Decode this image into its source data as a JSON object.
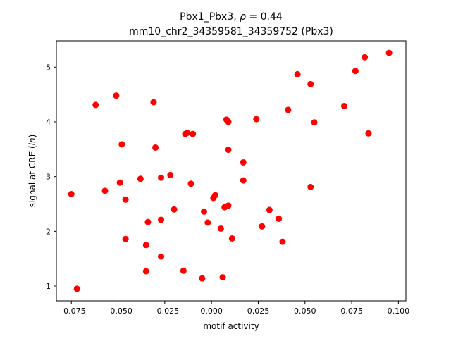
{
  "chart_data": {
    "type": "scatter",
    "title_line1": "Pbx1_Pbx3, ρ = 0.44",
    "title_line2": "mm10_chr2_34359581_34359752 (Pbx3)",
    "xlabel": "motif activity",
    "ylabel": "signal at CRE (ln)",
    "xlim": [
      -0.083,
      0.104
    ],
    "ylim": [
      0.73,
      5.48
    ],
    "x_ticks": [
      -0.075,
      -0.05,
      -0.025,
      0.0,
      0.025,
      0.05,
      0.075,
      0.1
    ],
    "x_tick_labels": [
      "−0.075",
      "−0.050",
      "−0.025",
      "0.000",
      "0.025",
      "0.050",
      "0.075",
      "0.100"
    ],
    "y_ticks": [
      1,
      2,
      3,
      4,
      5
    ],
    "y_tick_labels": [
      "1",
      "2",
      "3",
      "4",
      "5"
    ],
    "marker_color": "#ff0000",
    "grid": false,
    "points": [
      {
        "x": -0.075,
        "y": 2.68
      },
      {
        "x": -0.072,
        "y": 0.95
      },
      {
        "x": -0.062,
        "y": 4.31
      },
      {
        "x": -0.057,
        "y": 2.74
      },
      {
        "x": -0.051,
        "y": 4.48
      },
      {
        "x": -0.049,
        "y": 2.89
      },
      {
        "x": -0.048,
        "y": 3.59
      },
      {
        "x": -0.046,
        "y": 2.58
      },
      {
        "x": -0.046,
        "y": 1.86
      },
      {
        "x": -0.038,
        "y": 2.96
      },
      {
        "x": -0.035,
        "y": 1.75
      },
      {
        "x": -0.035,
        "y": 1.27
      },
      {
        "x": -0.034,
        "y": 2.17
      },
      {
        "x": -0.031,
        "y": 4.36
      },
      {
        "x": -0.03,
        "y": 3.53
      },
      {
        "x": -0.027,
        "y": 2.21
      },
      {
        "x": -0.027,
        "y": 2.98
      },
      {
        "x": -0.027,
        "y": 1.54
      },
      {
        "x": -0.022,
        "y": 3.03
      },
      {
        "x": -0.02,
        "y": 2.4
      },
      {
        "x": -0.015,
        "y": 1.28
      },
      {
        "x": -0.014,
        "y": 3.78
      },
      {
        "x": -0.013,
        "y": 3.8
      },
      {
        "x": -0.011,
        "y": 2.87
      },
      {
        "x": -0.01,
        "y": 3.78
      },
      {
        "x": -0.005,
        "y": 1.14
      },
      {
        "x": -0.004,
        "y": 2.36
      },
      {
        "x": -0.002,
        "y": 2.16
      },
      {
        "x": 0.001,
        "y": 2.61
      },
      {
        "x": 0.002,
        "y": 2.66
      },
      {
        "x": 0.005,
        "y": 2.05
      },
      {
        "x": 0.006,
        "y": 1.16
      },
      {
        "x": 0.007,
        "y": 2.44
      },
      {
        "x": 0.008,
        "y": 4.04
      },
      {
        "x": 0.009,
        "y": 2.47
      },
      {
        "x": 0.009,
        "y": 3.49
      },
      {
        "x": 0.009,
        "y": 4.0
      },
      {
        "x": 0.011,
        "y": 1.87
      },
      {
        "x": 0.017,
        "y": 3.26
      },
      {
        "x": 0.017,
        "y": 2.93
      },
      {
        "x": 0.024,
        "y": 4.05
      },
      {
        "x": 0.027,
        "y": 2.09
      },
      {
        "x": 0.031,
        "y": 2.39
      },
      {
        "x": 0.036,
        "y": 2.23
      },
      {
        "x": 0.038,
        "y": 1.81
      },
      {
        "x": 0.041,
        "y": 4.22
      },
      {
        "x": 0.046,
        "y": 4.87
      },
      {
        "x": 0.053,
        "y": 2.81
      },
      {
        "x": 0.053,
        "y": 4.69
      },
      {
        "x": 0.055,
        "y": 3.99
      },
      {
        "x": 0.071,
        "y": 4.29
      },
      {
        "x": 0.077,
        "y": 4.93
      },
      {
        "x": 0.082,
        "y": 5.18
      },
      {
        "x": 0.084,
        "y": 3.79
      },
      {
        "x": 0.095,
        "y": 5.26
      }
    ]
  }
}
